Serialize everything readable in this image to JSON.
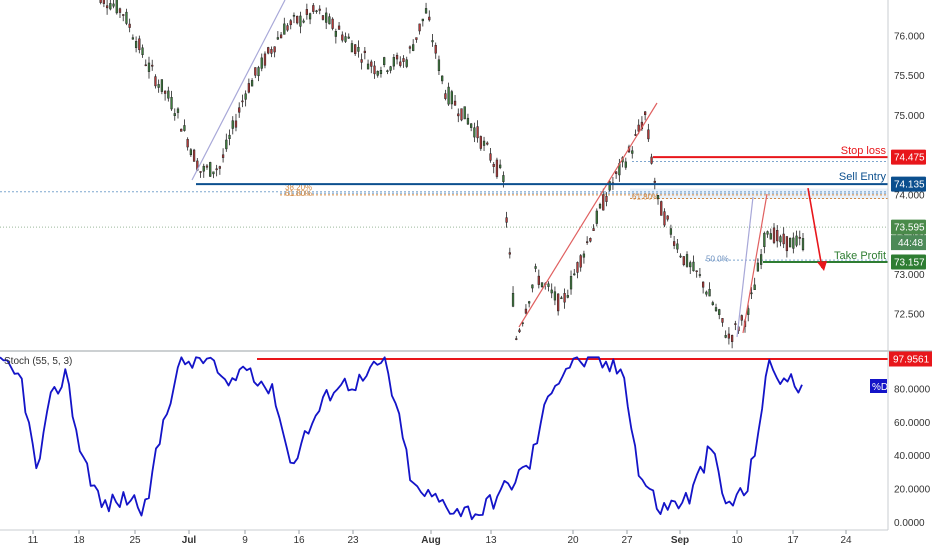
{
  "colors": {
    "up": "#3f7f3f",
    "down": "#b23a3a",
    "stop": "#e8161b",
    "entry": "#0b4f8e",
    "take": "#2e7d32",
    "stoch": "#1414c8",
    "fib": "#d18a45",
    "trend": "#e06060",
    "axis_badge": "#4a8a4a"
  },
  "chart_data": [
    {
      "type": "candlestick",
      "ylim": [
        72.05,
        76.45
      ],
      "x_ticks": [
        "11",
        "18",
        "25",
        "Jul",
        "9",
        "16",
        "23",
        "Aug",
        "13",
        "20",
        "27",
        "Sep",
        "10",
        "17",
        "24"
      ],
      "y_ticks": [
        "76.000",
        "75.500",
        "75.000",
        "74.500",
        "74.000",
        "73.500",
        "73.000",
        "72.500"
      ],
      "path_anchors": [
        [
          0,
          76.6
        ],
        [
          10,
          76.3
        ],
        [
          18,
          75.6
        ],
        [
          26,
          75.1
        ],
        [
          34,
          74.3
        ],
        [
          40,
          74.35
        ],
        [
          48,
          75.3
        ],
        [
          60,
          76.1
        ],
        [
          70,
          76.3
        ],
        [
          80,
          75.95
        ],
        [
          88,
          75.6
        ],
        [
          98,
          75.7
        ],
        [
          104,
          76.3
        ],
        [
          110,
          75.3
        ],
        [
          118,
          74.9
        ],
        [
          128,
          74.2
        ],
        [
          132,
          72.2
        ],
        [
          138,
          73.0
        ],
        [
          146,
          72.6
        ],
        [
          152,
          73.2
        ],
        [
          160,
          74.0
        ],
        [
          168,
          74.6
        ],
        [
          172,
          75.0
        ],
        [
          176,
          73.9
        ],
        [
          184,
          73.2
        ],
        [
          190,
          72.9
        ],
        [
          198,
          72.2
        ],
        [
          204,
          72.5
        ],
        [
          210,
          73.6
        ],
        [
          214,
          73.4
        ]
      ],
      "levels": [
        {
          "name": "stop-loss",
          "label": "Stop loss",
          "price": "74.475",
          "value": 74.475
        },
        {
          "name": "sell-entry",
          "label": "Sell Entry",
          "price": "74.135",
          "value": 74.135
        },
        {
          "name": "take-profit",
          "label": "Take Profit",
          "price": "73.157",
          "value": 73.157
        }
      ],
      "current_price": {
        "value": "73.595",
        "countdown": "44:48"
      },
      "fib_labels": [
        "38.20%",
        "61.80%",
        "61.80%",
        "50.0%"
      ]
    },
    {
      "type": "line",
      "title": "Stoch (55, 5, 3)",
      "series": [
        {
          "name": "%D"
        }
      ],
      "ylim": [
        0,
        100
      ],
      "y_ticks": [
        "80.0000",
        "60.0000",
        "40.0000",
        "20.0000",
        "0.0000"
      ],
      "level": "97.9561",
      "anchors": [
        [
          0,
          95
        ],
        [
          6,
          85
        ],
        [
          10,
          30
        ],
        [
          14,
          72
        ],
        [
          18,
          90
        ],
        [
          22,
          45
        ],
        [
          28,
          10
        ],
        [
          36,
          15
        ],
        [
          40,
          8
        ],
        [
          46,
          70
        ],
        [
          50,
          96
        ],
        [
          58,
          98
        ],
        [
          62,
          80
        ],
        [
          68,
          95
        ],
        [
          76,
          75
        ],
        [
          80,
          35
        ],
        [
          86,
          60
        ],
        [
          92,
          82
        ],
        [
          100,
          85
        ],
        [
          106,
          98
        ],
        [
          110,
          60
        ],
        [
          114,
          20
        ],
        [
          126,
          8
        ],
        [
          132,
          6
        ],
        [
          140,
          22
        ],
        [
          146,
          35
        ],
        [
          152,
          82
        ],
        [
          158,
          98
        ],
        [
          166,
          95
        ],
        [
          172,
          90
        ],
        [
          176,
          30
        ],
        [
          182,
          8
        ],
        [
          190,
          15
        ],
        [
          196,
          45
        ],
        [
          200,
          10
        ],
        [
          206,
          20
        ],
        [
          212,
          95
        ],
        [
          216,
          85
        ],
        [
          222,
          82
        ]
      ]
    }
  ]
}
